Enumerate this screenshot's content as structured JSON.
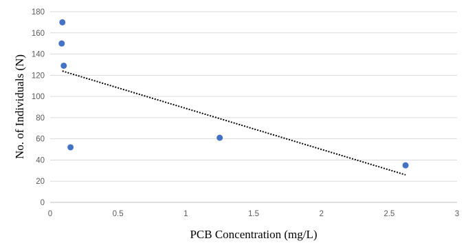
{
  "chart_data": {
    "type": "scatter",
    "title": "",
    "xlabel": "PCB Concentration (mg/L)",
    "ylabel": "No. of Individuals (N)",
    "xlim": [
      0,
      3
    ],
    "ylim": [
      0,
      180
    ],
    "x_ticks": [
      0,
      0.5,
      1,
      1.5,
      2,
      2.5,
      3
    ],
    "x_tick_labels": [
      "0",
      "0.5",
      "1",
      "1.5",
      "2",
      "2.5",
      "3"
    ],
    "y_ticks": [
      0,
      20,
      40,
      60,
      80,
      100,
      120,
      140,
      160,
      180
    ],
    "y_tick_labels": [
      "0",
      "20",
      "40",
      "60",
      "80",
      "100",
      "120",
      "140",
      "160",
      "180"
    ],
    "grid": "horizontal",
    "series": [
      {
        "x": [
          0.09,
          0.085,
          0.1,
          0.15,
          1.25,
          2.62
        ],
        "y": [
          170,
          150,
          129,
          52,
          61,
          35
        ],
        "color": "#4472C4"
      }
    ],
    "trendline": {
      "type": "linear",
      "x": [
        0.09,
        2.62
      ],
      "y": [
        124,
        26
      ],
      "color": "#000000",
      "style": "dotted"
    }
  }
}
